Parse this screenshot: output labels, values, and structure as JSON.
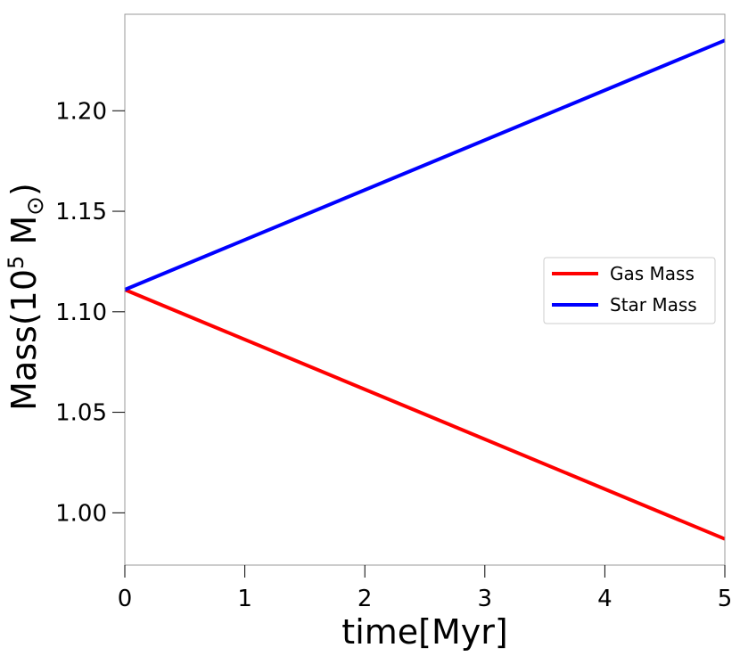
{
  "chart_data": {
    "type": "line",
    "xlabel": "time[Myr]",
    "ylabel_main": "Mass(10",
    "ylabel_exp": "5",
    "ylabel_unit": " M",
    "ylabel_sub": "⊙",
    "ylabel_close": ")",
    "xlim": [
      0,
      5
    ],
    "ylim": [
      0.974,
      1.248
    ],
    "xticks": [
      0,
      1,
      2,
      3,
      4,
      5
    ],
    "xtick_labels": [
      "0",
      "1",
      "2",
      "3",
      "4",
      "5"
    ],
    "yticks": [
      1.0,
      1.05,
      1.1,
      1.15,
      1.2
    ],
    "ytick_labels": [
      "1.00",
      "1.05",
      "1.10",
      "1.15",
      "1.20"
    ],
    "grid": false,
    "legend_position": "center-right",
    "series": [
      {
        "name": "Gas Mass",
        "color": "#ff0000",
        "x": [
          0,
          5
        ],
        "y": [
          1.111,
          0.987
        ]
      },
      {
        "name": "Star Mass",
        "color": "#0000ff",
        "x": [
          0,
          5
        ],
        "y": [
          1.111,
          1.235
        ]
      }
    ]
  }
}
